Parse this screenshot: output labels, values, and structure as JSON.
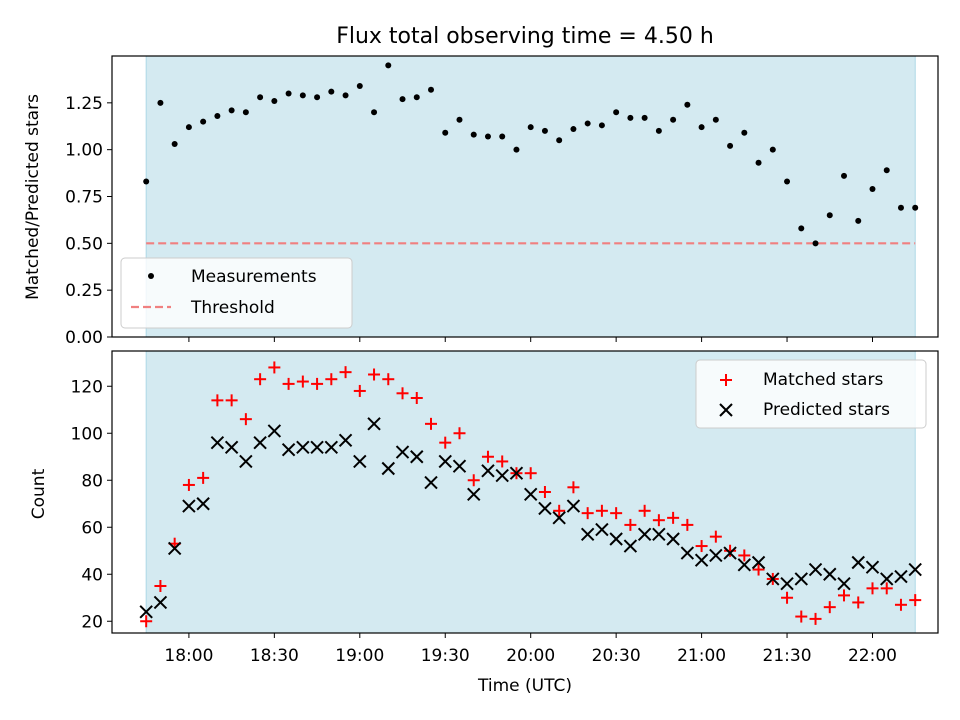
{
  "chart_data": [
    {
      "type": "scatter",
      "title": "Flux total observing time = 4.50 h",
      "xlabel": "",
      "ylabel": "Matched/Predicted stars",
      "x_ticks": [
        "18:00",
        "18:30",
        "19:00",
        "19:30",
        "20:00",
        "20:30",
        "21:00",
        "21:30",
        "22:00"
      ],
      "x_tick_values": [
        "18:00",
        "18:30",
        "19:00",
        "19:30",
        "20:00",
        "20:30",
        "21:00",
        "21:30",
        "22:00"
      ],
      "xlim": [
        "17:33",
        "22:23"
      ],
      "ylim": [
        0,
        1.5
      ],
      "y_ticks": [
        "0.00",
        "0.25",
        "0.50",
        "0.75",
        "1.00",
        "1.25"
      ],
      "y_tick_values": [
        0,
        0.25,
        0.5,
        0.75,
        1.0,
        1.25
      ],
      "shaded_span": [
        "17:45",
        "22:15"
      ],
      "shade_color": "#add8e6",
      "legend_position": "lower-left",
      "series": [
        {
          "name": "Measurements",
          "marker": "dot",
          "color": "#000000",
          "points": [
            [
              "17:45",
              0.83
            ],
            [
              "17:50",
              1.25
            ],
            [
              "17:55",
              1.03
            ],
            [
              "18:00",
              1.12
            ],
            [
              "18:05",
              1.15
            ],
            [
              "18:10",
              1.18
            ],
            [
              "18:15",
              1.21
            ],
            [
              "18:20",
              1.2
            ],
            [
              "18:25",
              1.28
            ],
            [
              "18:30",
              1.26
            ],
            [
              "18:35",
              1.3
            ],
            [
              "18:40",
              1.29
            ],
            [
              "18:45",
              1.28
            ],
            [
              "18:50",
              1.31
            ],
            [
              "18:55",
              1.29
            ],
            [
              "19:00",
              1.34
            ],
            [
              "19:05",
              1.2
            ],
            [
              "19:10",
              1.45
            ],
            [
              "19:15",
              1.27
            ],
            [
              "19:20",
              1.28
            ],
            [
              "19:25",
              1.32
            ],
            [
              "19:30",
              1.09
            ],
            [
              "19:35",
              1.16
            ],
            [
              "19:40",
              1.08
            ],
            [
              "19:45",
              1.07
            ],
            [
              "19:50",
              1.07
            ],
            [
              "19:55",
              1.0
            ],
            [
              "20:00",
              1.12
            ],
            [
              "20:05",
              1.1
            ],
            [
              "20:10",
              1.05
            ],
            [
              "20:15",
              1.11
            ],
            [
              "20:20",
              1.14
            ],
            [
              "20:25",
              1.13
            ],
            [
              "20:30",
              1.2
            ],
            [
              "20:35",
              1.17
            ],
            [
              "20:40",
              1.17
            ],
            [
              "20:45",
              1.1
            ],
            [
              "20:50",
              1.16
            ],
            [
              "20:55",
              1.24
            ],
            [
              "21:00",
              1.12
            ],
            [
              "21:05",
              1.16
            ],
            [
              "21:10",
              1.02
            ],
            [
              "21:15",
              1.09
            ],
            [
              "21:20",
              0.93
            ],
            [
              "21:25",
              1.0
            ],
            [
              "21:30",
              0.83
            ],
            [
              "21:35",
              0.58
            ],
            [
              "21:40",
              0.5
            ],
            [
              "21:45",
              0.65
            ],
            [
              "21:50",
              0.86
            ],
            [
              "21:55",
              0.62
            ],
            [
              "22:00",
              0.79
            ],
            [
              "22:05",
              0.89
            ],
            [
              "22:10",
              0.69
            ],
            [
              "22:15",
              0.69
            ]
          ]
        },
        {
          "name": "Threshold",
          "marker": "dashed-line",
          "color": "#f08080",
          "value": 0.5
        }
      ]
    },
    {
      "type": "scatter",
      "title": "",
      "xlabel": "Time (UTC)",
      "ylabel": "Count",
      "x_ticks": [
        "18:00",
        "18:30",
        "19:00",
        "19:30",
        "20:00",
        "20:30",
        "21:00",
        "21:30",
        "22:00"
      ],
      "x_tick_values": [
        "18:00",
        "18:30",
        "19:00",
        "19:30",
        "20:00",
        "20:30",
        "21:00",
        "21:30",
        "22:00"
      ],
      "xlim": [
        "17:33",
        "22:23"
      ],
      "ylim": [
        15,
        135
      ],
      "y_ticks": [
        "20",
        "40",
        "60",
        "80",
        "100",
        "120"
      ],
      "y_tick_values": [
        20,
        40,
        60,
        80,
        100,
        120
      ],
      "shaded_span": [
        "17:45",
        "22:15"
      ],
      "shade_color": "#add8e6",
      "legend_position": "upper-right",
      "x": [
        "17:45",
        "17:50",
        "17:55",
        "18:00",
        "18:05",
        "18:10",
        "18:15",
        "18:20",
        "18:25",
        "18:30",
        "18:35",
        "18:40",
        "18:45",
        "18:50",
        "18:55",
        "19:00",
        "19:05",
        "19:10",
        "19:15",
        "19:20",
        "19:25",
        "19:30",
        "19:35",
        "19:40",
        "19:45",
        "19:50",
        "19:55",
        "20:00",
        "20:05",
        "20:10",
        "20:15",
        "20:20",
        "20:25",
        "20:30",
        "20:35",
        "20:40",
        "20:45",
        "20:50",
        "20:55",
        "21:00",
        "21:05",
        "21:10",
        "21:15",
        "21:20",
        "21:25",
        "21:30",
        "21:35",
        "21:40",
        "21:45",
        "21:50",
        "21:55",
        "22:00",
        "22:05",
        "22:10",
        "22:15"
      ],
      "series": [
        {
          "name": "Matched stars",
          "marker": "plus",
          "color": "#ff0000",
          "values": [
            20,
            35,
            53,
            78,
            81,
            114,
            114,
            106,
            123,
            128,
            121,
            122,
            121,
            123,
            126,
            118,
            125,
            123,
            117,
            115,
            104,
            96,
            100,
            80,
            90,
            88,
            83,
            83,
            75,
            67,
            77,
            66,
            67,
            66,
            61,
            67,
            63,
            64,
            61,
            52,
            56,
            50,
            48,
            42,
            38,
            30,
            22,
            21,
            26,
            31,
            28,
            34,
            34,
            27,
            29
          ]
        },
        {
          "name": "Predicted stars",
          "marker": "x",
          "color": "#000000",
          "values": [
            24,
            28,
            51,
            69,
            70,
            96,
            94,
            88,
            96,
            101,
            93,
            94,
            94,
            94,
            97,
            88,
            104,
            85,
            92,
            90,
            79,
            88,
            86,
            74,
            84,
            82,
            83,
            74,
            68,
            64,
            69,
            57,
            59,
            55,
            52,
            57,
            57,
            55,
            49,
            46,
            48,
            49,
            44,
            45,
            38,
            36,
            38,
            42,
            40,
            36,
            45,
            43,
            38,
            39,
            42
          ]
        }
      ]
    }
  ]
}
